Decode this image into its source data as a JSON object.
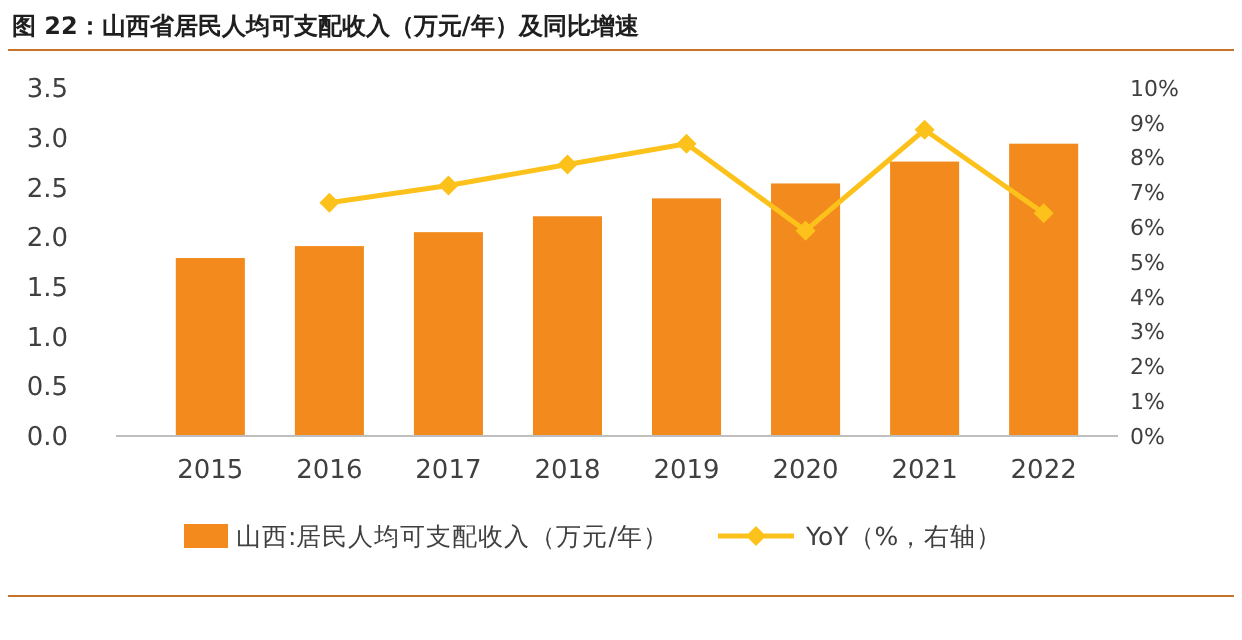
{
  "chart_data": {
    "type": "bar",
    "title": "图 22：山西省居民人均可支配收入（万元/年）及同比增速",
    "categories": [
      "2015",
      "2016",
      "2017",
      "2018",
      "2019",
      "2020",
      "2021",
      "2022"
    ],
    "series": [
      {
        "name": "山西:居民人均可支配收入（万元/年）",
        "color": "#f28a1e",
        "values": [
          1.79,
          1.91,
          2.05,
          2.21,
          2.39,
          2.54,
          2.76,
          2.94
        ]
      },
      {
        "name": "YoY（%，右轴）",
        "type": "line",
        "axis": "y2",
        "color": "#fcc21b",
        "marker": "diamond",
        "values": [
          null,
          6.7,
          7.2,
          7.8,
          8.4,
          5.9,
          8.8,
          6.4
        ]
      }
    ],
    "ylim": [
      0,
      3.5
    ],
    "yticks": [
      {
        "value": 0,
        "label": "0.0"
      },
      {
        "value": 0.5,
        "label": "0.5"
      },
      {
        "value": 1,
        "label": "1.0"
      },
      {
        "value": 1.5,
        "label": "1.5"
      },
      {
        "value": 2,
        "label": "2.0"
      },
      {
        "value": 2.5,
        "label": "2.5"
      },
      {
        "value": 3,
        "label": "3.0"
      },
      {
        "value": 3.5,
        "label": "3.5"
      }
    ],
    "y2lim": [
      0,
      10
    ],
    "y2ticks": [
      {
        "value": 0,
        "label": "0%"
      },
      {
        "value": 1,
        "label": "1%"
      },
      {
        "value": 2,
        "label": "2%"
      },
      {
        "value": 3,
        "label": "3%"
      },
      {
        "value": 4,
        "label": "4%"
      },
      {
        "value": 5,
        "label": "5%"
      },
      {
        "value": 6,
        "label": "6%"
      },
      {
        "value": 7,
        "label": "7%"
      },
      {
        "value": 8,
        "label": "8%"
      },
      {
        "value": 9,
        "label": "9%"
      },
      {
        "value": 10,
        "label": "10%"
      }
    ],
    "grid": false,
    "legend": "bottom"
  }
}
